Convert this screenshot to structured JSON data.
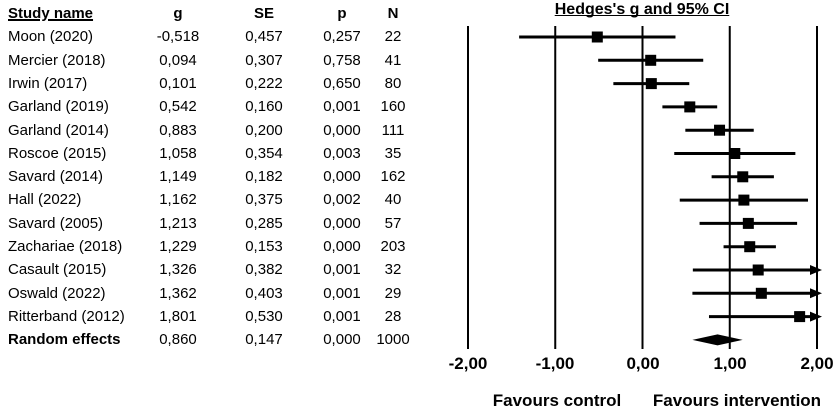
{
  "window": {
    "background": "#ffffff",
    "foreground": "#000000"
  },
  "table": {
    "headers": {
      "study": "Study name",
      "g": "g",
      "se": "SE",
      "p": "p",
      "n": "N"
    }
  },
  "plot": {
    "title": "Hedges's g and 95% CI",
    "tick_labels": [
      "-2,00",
      "-1,00",
      "0,00",
      "1,00",
      "2,00"
    ],
    "footer_left": "Favours control",
    "footer_right": "Favours intervention"
  },
  "chart_data": {
    "type": "forest",
    "title": "Hedges's g and 95% CI",
    "xlim": [
      -2,
      2
    ],
    "x_ticks": [
      -2,
      -1,
      0,
      1,
      2
    ],
    "decimal_separator": ",",
    "xlabel_left": "Favours control",
    "xlabel_right": "Favours intervention",
    "columns": [
      "Study name",
      "g",
      "SE",
      "p",
      "N"
    ],
    "studies": [
      {
        "name": "Moon (2020)",
        "g": -0.518,
        "se": 0.457,
        "p": 0.257,
        "n": 22,
        "ci_low": -1.414,
        "ci_high": 0.378,
        "summary": false
      },
      {
        "name": "Mercier (2018)",
        "g": 0.094,
        "se": 0.307,
        "p": 0.758,
        "n": 41,
        "ci_low": -0.508,
        "ci_high": 0.696,
        "summary": false
      },
      {
        "name": "Irwin (2017)",
        "g": 0.101,
        "se": 0.222,
        "p": 0.65,
        "n": 80,
        "ci_low": -0.334,
        "ci_high": 0.536,
        "summary": false
      },
      {
        "name": "Garland (2019)",
        "g": 0.542,
        "se": 0.16,
        "p": 0.001,
        "n": 160,
        "ci_low": 0.228,
        "ci_high": 0.856,
        "summary": false
      },
      {
        "name": "Garland (2014)",
        "g": 0.883,
        "se": 0.2,
        "p": 0.0,
        "n": 111,
        "ci_low": 0.491,
        "ci_high": 1.275,
        "summary": false
      },
      {
        "name": "Roscoe (2015)",
        "g": 1.058,
        "se": 0.354,
        "p": 0.003,
        "n": 35,
        "ci_low": 0.364,
        "ci_high": 1.752,
        "summary": false
      },
      {
        "name": "Savard (2014)",
        "g": 1.149,
        "se": 0.182,
        "p": 0.0,
        "n": 162,
        "ci_low": 0.792,
        "ci_high": 1.506,
        "summary": false
      },
      {
        "name": "Hall (2022)",
        "g": 1.162,
        "se": 0.375,
        "p": 0.002,
        "n": 40,
        "ci_low": 0.427,
        "ci_high": 1.897,
        "summary": false
      },
      {
        "name": "Savard (2005)",
        "g": 1.213,
        "se": 0.285,
        "p": 0.0,
        "n": 57,
        "ci_low": 0.654,
        "ci_high": 1.772,
        "summary": false
      },
      {
        "name": "Zachariae (2018)",
        "g": 1.229,
        "se": 0.153,
        "p": 0.0,
        "n": 203,
        "ci_low": 0.929,
        "ci_high": 1.529,
        "summary": false
      },
      {
        "name": "Casault (2015)",
        "g": 1.326,
        "se": 0.382,
        "p": 0.001,
        "n": 32,
        "ci_low": 0.577,
        "ci_high": 2.075,
        "summary": false
      },
      {
        "name": "Oswald (2022)",
        "g": 1.362,
        "se": 0.403,
        "p": 0.001,
        "n": 29,
        "ci_low": 0.572,
        "ci_high": 2.152,
        "summary": false
      },
      {
        "name": "Ritterband (2012)",
        "g": 1.801,
        "se": 0.53,
        "p": 0.001,
        "n": 28,
        "ci_low": 0.762,
        "ci_high": 2.84,
        "summary": false
      },
      {
        "name": "Random effects",
        "g": 0.86,
        "se": 0.147,
        "p": 0.0,
        "n": 1000,
        "ci_low": 0.572,
        "ci_high": 1.148,
        "summary": true
      }
    ]
  }
}
